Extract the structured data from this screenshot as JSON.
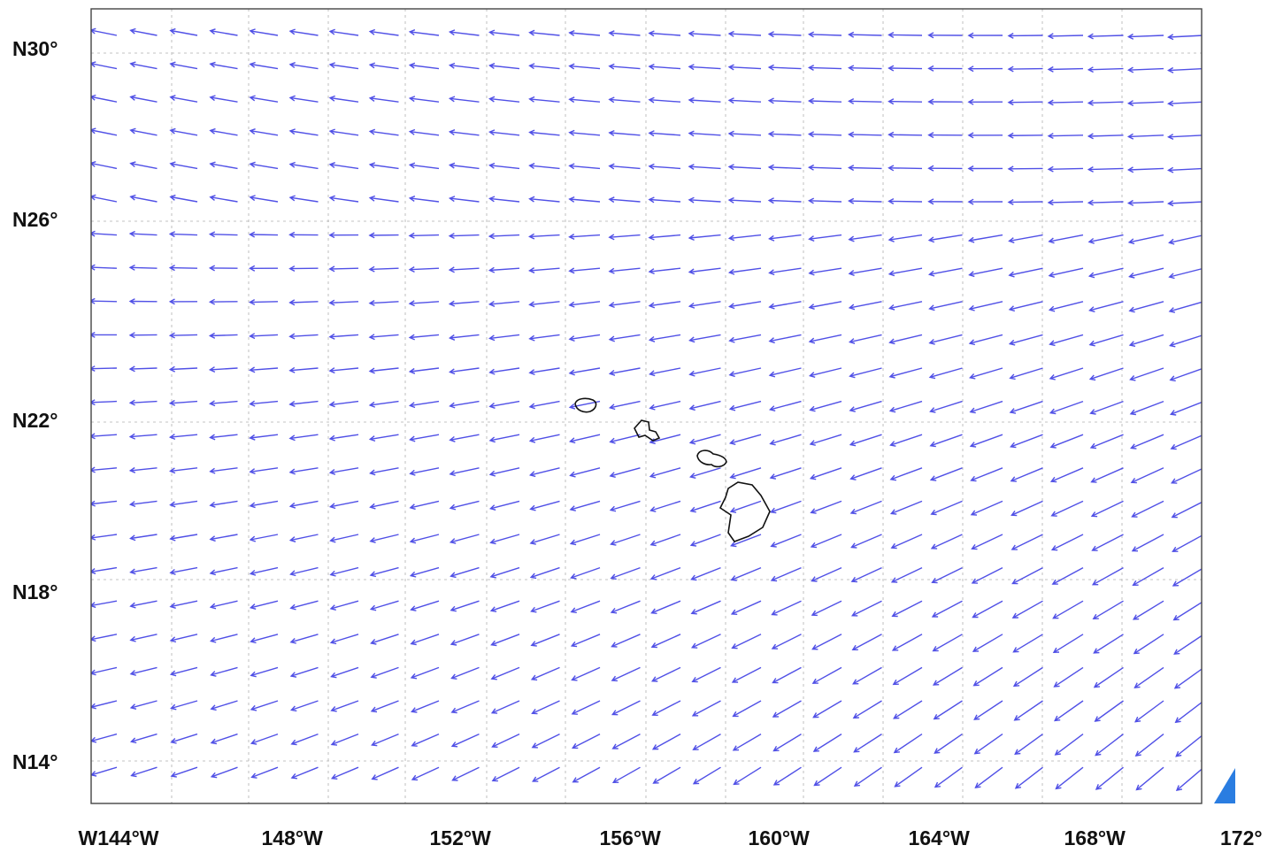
{
  "map": {
    "lat_labels": [
      "N30°",
      "N26°",
      "N22°",
      "N18°",
      "N14°"
    ],
    "lon_labels": [
      "W144°W",
      "148°W",
      "152°W",
      "156°W",
      "160°W",
      "164°W",
      "168°W",
      "172°"
    ],
    "vector_color": "#5050e6",
    "coastline_color": "#111111",
    "grid_color": "#b0b0b0",
    "frame_color": "#444444",
    "islands": [
      "Kauai",
      "Oahu",
      "Maui",
      "Hawaii"
    ]
  }
}
